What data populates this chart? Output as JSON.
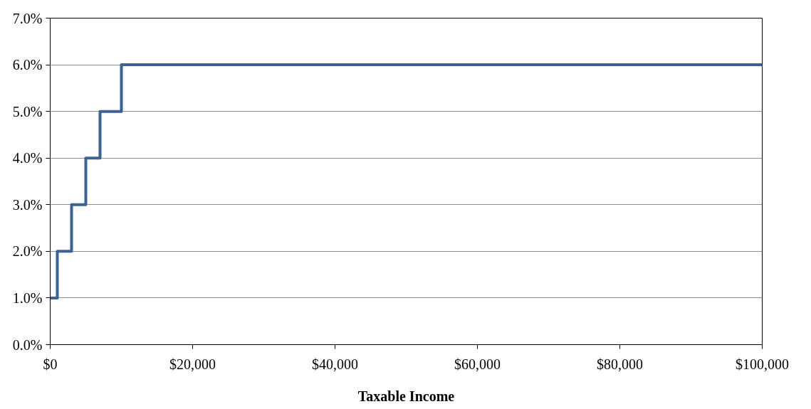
{
  "chart_data": {
    "type": "step",
    "xlabel": "Taxable Income",
    "x": [
      0,
      1000,
      3000,
      5000,
      7000,
      10000,
      100000
    ],
    "series": [
      {
        "color": "#3b6195",
        "values": [
          1,
          2,
          3,
          4,
          5,
          6,
          6
        ]
      }
    ],
    "xlim": [
      0,
      100000
    ],
    "xticks": [
      {
        "value": 0,
        "label": "$0"
      },
      {
        "value": 20000,
        "label": "$20,000"
      },
      {
        "value": 40000,
        "label": "$40,000"
      },
      {
        "value": 60000,
        "label": "$60,000"
      },
      {
        "value": 80000,
        "label": "$80,000"
      },
      {
        "value": 100000,
        "label": "$100,000"
      }
    ],
    "ylim": [
      0,
      7
    ],
    "yticks": [
      {
        "value": 0,
        "label": "0.0%"
      },
      {
        "value": 1,
        "label": "1.0%"
      },
      {
        "value": 2,
        "label": "2.0%"
      },
      {
        "value": 3,
        "label": "3.0%"
      },
      {
        "value": 4,
        "label": "4.0%"
      },
      {
        "value": 5,
        "label": "5.0%"
      },
      {
        "value": 6,
        "label": "6.0%"
      },
      {
        "value": 7,
        "label": "7.0%"
      }
    ],
    "grid": "y"
  }
}
